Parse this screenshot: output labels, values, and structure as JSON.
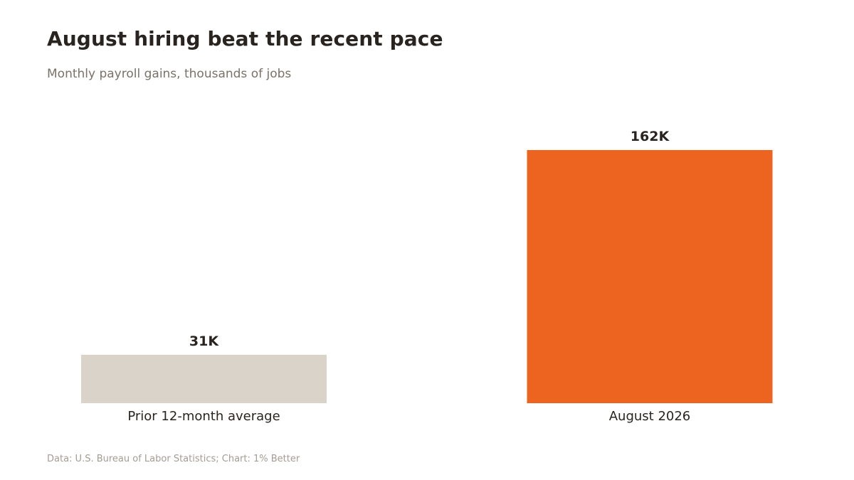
{
  "chart_data": {
    "type": "bar",
    "title": "August hiring beat the recent pace",
    "subtitle": "Monthly payroll gains, thousands of jobs",
    "categories": [
      "Prior 12-month average",
      "August 2026"
    ],
    "values": [
      31,
      162
    ],
    "value_labels": [
      "31K",
      "162K"
    ],
    "colors": [
      "#d9d3ca",
      "#ec6420"
    ],
    "xlabel": "",
    "ylabel": "",
    "ylim": [
      0,
      162
    ],
    "grid": false,
    "source": "Data: U.S. Bureau of Labor Statistics; Chart: 1% Better"
  }
}
